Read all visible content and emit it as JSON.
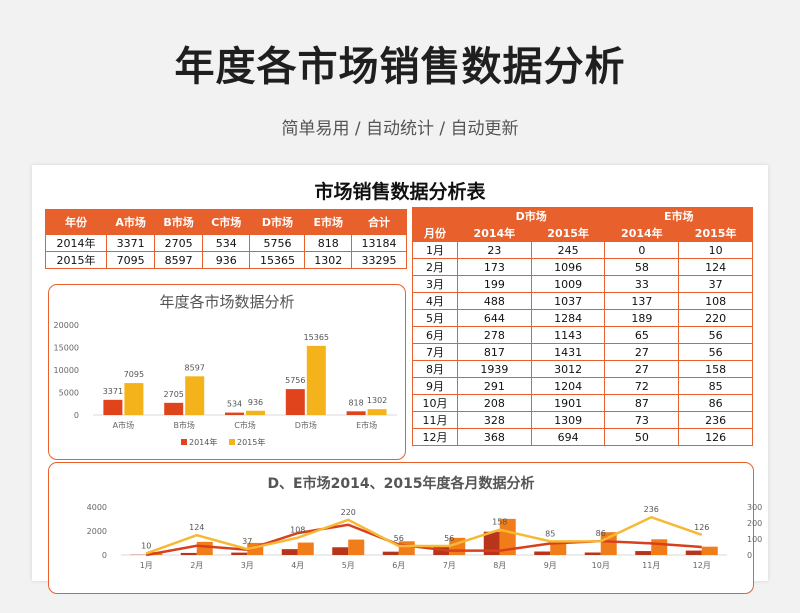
{
  "header": {
    "title": "年度各市场销售数据分析",
    "subtitle": "简单易用 / 自动统计 / 自动更新"
  },
  "sheet": {
    "title": "市场销售数据分析表"
  },
  "annual_table": {
    "headers": [
      "年份",
      "A市场",
      "B市场",
      "C市场",
      "D市场",
      "E市场",
      "合计"
    ],
    "rows": [
      [
        "2014年",
        "3371",
        "2705",
        "534",
        "5756",
        "818",
        "13184"
      ],
      [
        "2015年",
        "7095",
        "8597",
        "936",
        "15365",
        "1302",
        "33295"
      ]
    ]
  },
  "monthly_table": {
    "group_headers": [
      "D市场",
      "E市场"
    ],
    "headers": [
      "月份",
      "2014年",
      "2015年",
      "2014年",
      "2015年"
    ],
    "rows": [
      [
        "1月",
        "23",
        "245",
        "0",
        "10"
      ],
      [
        "2月",
        "173",
        "1096",
        "58",
        "124"
      ],
      [
        "3月",
        "199",
        "1009",
        "33",
        "37"
      ],
      [
        "4月",
        "488",
        "1037",
        "137",
        "108"
      ],
      [
        "5月",
        "644",
        "1284",
        "189",
        "220"
      ],
      [
        "6月",
        "278",
        "1143",
        "65",
        "56"
      ],
      [
        "7月",
        "817",
        "1431",
        "27",
        "56"
      ],
      [
        "8月",
        "1939",
        "3012",
        "27",
        "158"
      ],
      [
        "9月",
        "291",
        "1204",
        "72",
        "85"
      ],
      [
        "10月",
        "208",
        "1901",
        "87",
        "86"
      ],
      [
        "11月",
        "328",
        "1309",
        "73",
        "236"
      ],
      [
        "12月",
        "368",
        "694",
        "50",
        "126"
      ]
    ]
  },
  "colors": {
    "accent": "#e8612c",
    "series_2014": "#e0441c",
    "series_2015": "#f5b31b"
  },
  "chart_data": [
    {
      "type": "bar",
      "title": "年度各市场数据分析",
      "categories": [
        "A市场",
        "B市场",
        "C市场",
        "D市场",
        "E市场"
      ],
      "series": [
        {
          "name": "2014年",
          "values": [
            3371,
            2705,
            534,
            5756,
            818
          ]
        },
        {
          "name": "2015年",
          "values": [
            7095,
            8597,
            936,
            15365,
            1302
          ]
        }
      ],
      "ylim": [
        0,
        20000
      ],
      "yticks": [
        0,
        5000,
        10000,
        15000,
        20000
      ],
      "legend": "bottom",
      "grid": false
    },
    {
      "type": "bar",
      "title": "D、E市场2014、2015年度各月数据分析",
      "categories": [
        "1月",
        "2月",
        "3月",
        "4月",
        "5月",
        "6月",
        "7月",
        "8月",
        "9月",
        "10月",
        "11月",
        "12月"
      ],
      "series": [
        {
          "values": [
            23,
            173,
            199,
            488,
            644,
            278,
            817,
            1939,
            291,
            208,
            328,
            368
          ]
        },
        {
          "values": [
            245,
            1096,
            1009,
            1037,
            1284,
            1143,
            1431,
            3012,
            1204,
            1901,
            1309,
            694
          ]
        },
        {
          "values": [
            0,
            58,
            33,
            137,
            189,
            65,
            27,
            27,
            72,
            87,
            73,
            50
          ],
          "axis": "right",
          "kind": "line"
        },
        {
          "values": [
            10,
            124,
            37,
            108,
            220,
            56,
            56,
            158,
            85,
            86,
            236,
            126
          ],
          "axis": "right",
          "kind": "line"
        }
      ],
      "ylim": [
        0,
        4000
      ],
      "yticks": [
        0,
        2000,
        4000
      ],
      "y2lim": [
        0,
        300
      ],
      "y2ticks": [
        0,
        100,
        200,
        300
      ],
      "grid": false
    }
  ]
}
